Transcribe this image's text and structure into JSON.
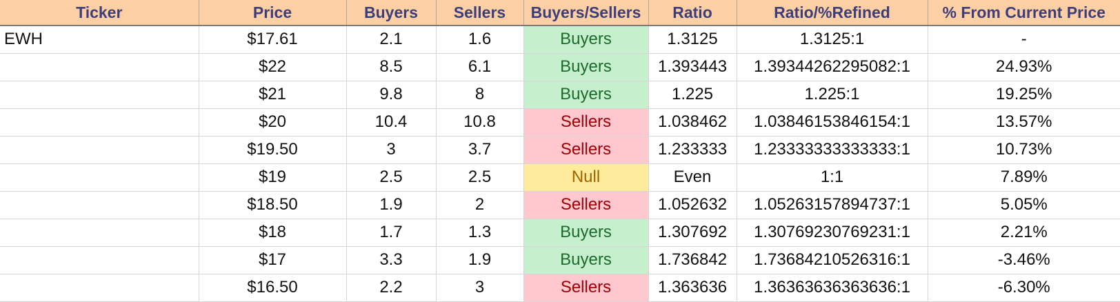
{
  "columns": [
    "Ticker",
    "Price",
    "Buyers",
    "Sellers",
    "Buyers/Sellers",
    "Ratio",
    "Ratio/%Refined",
    "% From Current Price"
  ],
  "rows": [
    {
      "ticker": "EWH",
      "price": "$17.61",
      "buyers": "2.1",
      "sellers": "1.6",
      "bs": "Buyers",
      "ratio": "1.3125",
      "refined": "1.3125:1",
      "pct": "-"
    },
    {
      "ticker": "",
      "price": "$22",
      "buyers": "8.5",
      "sellers": "6.1",
      "bs": "Buyers",
      "ratio": "1.393443",
      "refined": "1.39344262295082:1",
      "pct": "24.93%"
    },
    {
      "ticker": "",
      "price": "$21",
      "buyers": "9.8",
      "sellers": "8",
      "bs": "Buyers",
      "ratio": "1.225",
      "refined": "1.225:1",
      "pct": "19.25%"
    },
    {
      "ticker": "",
      "price": "$20",
      "buyers": "10.4",
      "sellers": "10.8",
      "bs": "Sellers",
      "ratio": "1.038462",
      "refined": "1.03846153846154:1",
      "pct": "13.57%"
    },
    {
      "ticker": "",
      "price": "$19.50",
      "buyers": "3",
      "sellers": "3.7",
      "bs": "Sellers",
      "ratio": "1.233333",
      "refined": "1.23333333333333:1",
      "pct": "10.73%"
    },
    {
      "ticker": "",
      "price": "$19",
      "buyers": "2.5",
      "sellers": "2.5",
      "bs": "Null",
      "ratio": "Even",
      "refined": "1:1",
      "pct": "7.89%"
    },
    {
      "ticker": "",
      "price": "$18.50",
      "buyers": "1.9",
      "sellers": "2",
      "bs": "Sellers",
      "ratio": "1.052632",
      "refined": "1.05263157894737:1",
      "pct": "5.05%"
    },
    {
      "ticker": "",
      "price": "$18",
      "buyers": "1.7",
      "sellers": "1.3",
      "bs": "Buyers",
      "ratio": "1.307692",
      "refined": "1.30769230769231:1",
      "pct": "2.21%"
    },
    {
      "ticker": "",
      "price": "$17",
      "buyers": "3.3",
      "sellers": "1.9",
      "bs": "Buyers",
      "ratio": "1.736842",
      "refined": "1.73684210526316:1",
      "pct": "-3.46%"
    },
    {
      "ticker": "",
      "price": "$16.50",
      "buyers": "2.2",
      "sellers": "3",
      "bs": "Sellers",
      "ratio": "1.363636",
      "refined": "1.36363636363636:1",
      "pct": "-6.30%"
    }
  ],
  "colors": {
    "header_bg": "#fcd0a4",
    "header_text": "#3d3d7a",
    "buyers_bg": "#c6efce",
    "buyers_text": "#1e6b2c",
    "sellers_bg": "#ffc7ce",
    "sellers_text": "#9c0006",
    "null_bg": "#ffeb9c",
    "null_text": "#9c6500"
  }
}
